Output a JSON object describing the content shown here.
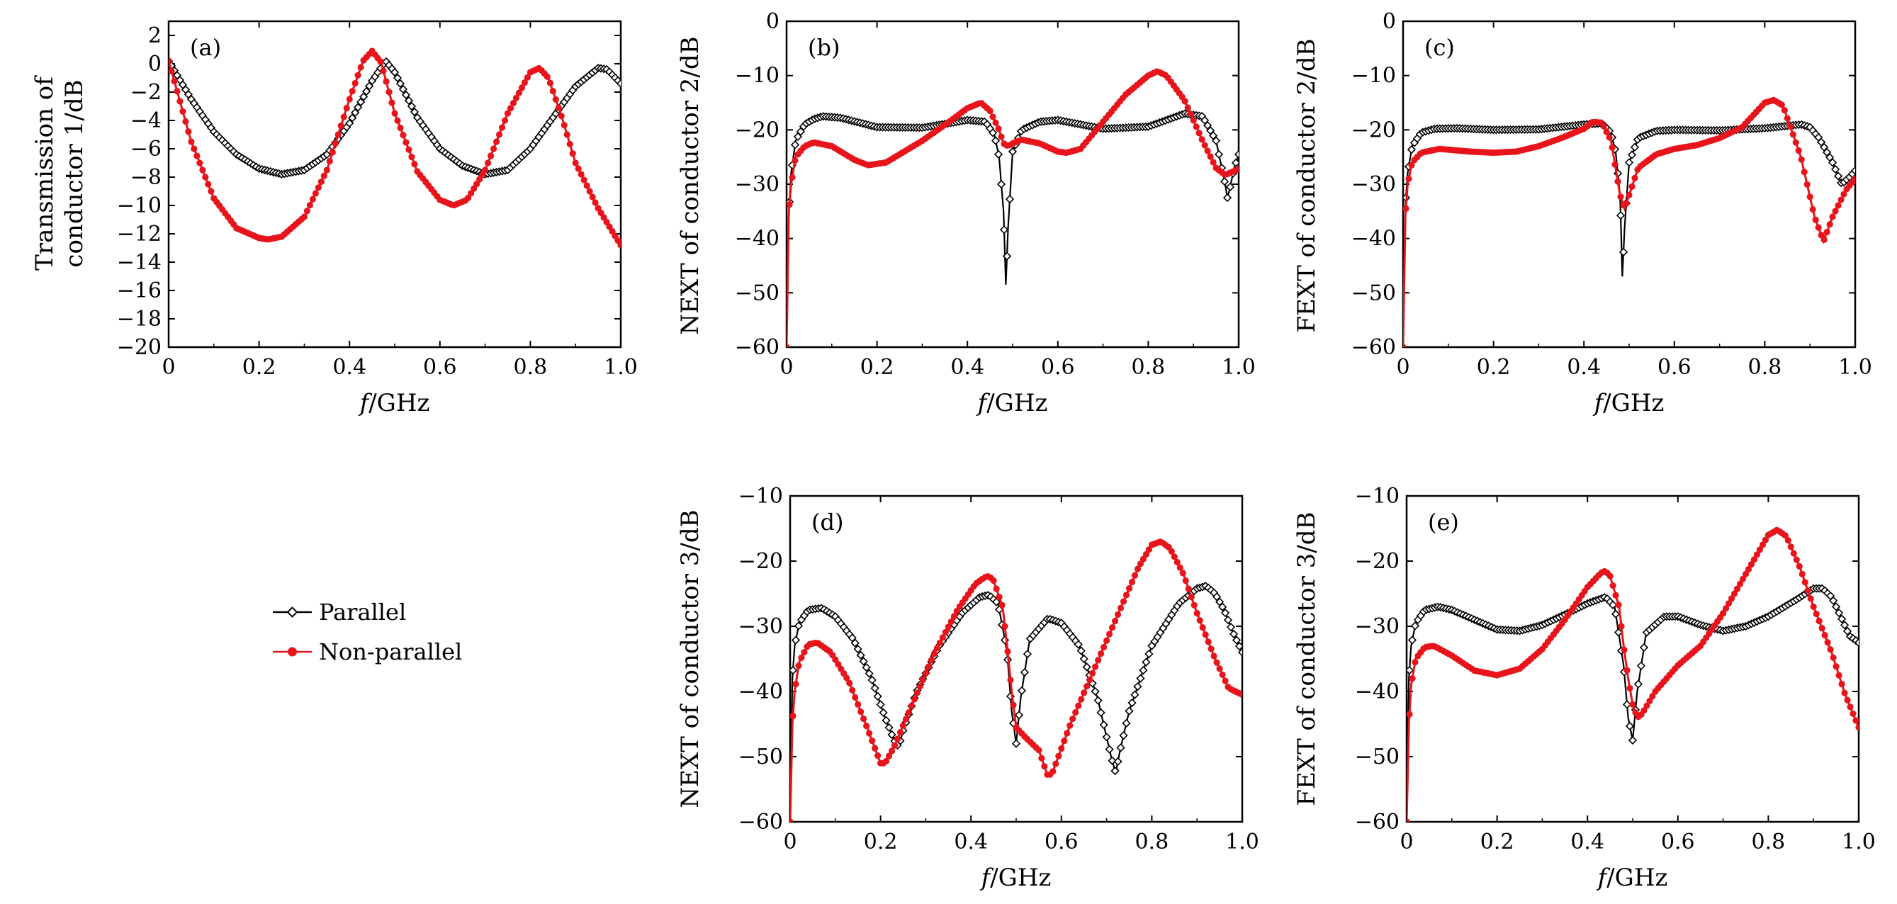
{
  "legend": {
    "parallel": "Parallel",
    "nonparallel": "Non-parallel"
  },
  "colors": {
    "parallel": "#000000",
    "nonparallel": "#e8141b"
  },
  "chart_data": [
    {
      "id": "a",
      "type": "line",
      "panel_label": "(a)",
      "ylabel_line1": "Transmission of",
      "ylabel_line2": "conductor 1/dB",
      "xlabel_pre": "f",
      "xlabel_post": "/GHz",
      "xlim": [
        0,
        1
      ],
      "ylim": [
        -20,
        3
      ],
      "xticks": [
        0,
        0.2,
        0.4,
        0.6,
        0.8,
        1.0
      ],
      "xtick_labels": [
        "0",
        "0.2",
        "0.4",
        "0.6",
        "0.8",
        "1.0"
      ],
      "yticks": [
        2,
        0,
        -2,
        -4,
        -6,
        -8,
        -10,
        -12,
        -14,
        -16,
        -18,
        -20
      ],
      "ytick_labels": [
        "2",
        "0",
        "−2",
        "−4",
        "−6",
        "−8",
        "−10",
        "−12",
        "−14",
        "−16",
        "−18",
        "−20"
      ],
      "series": [
        {
          "name": "Parallel",
          "x": [
            0,
            0.05,
            0.1,
            0.15,
            0.2,
            0.25,
            0.3,
            0.35,
            0.4,
            0.45,
            0.48,
            0.5,
            0.55,
            0.6,
            0.65,
            0.7,
            0.75,
            0.8,
            0.85,
            0.9,
            0.95,
            0.97,
            1.0
          ],
          "y": [
            0.2,
            -2.5,
            -4.8,
            -6.4,
            -7.4,
            -7.8,
            -7.5,
            -6.4,
            -4.2,
            -1.2,
            0.2,
            -0.6,
            -3.8,
            -6.0,
            -7.2,
            -7.8,
            -7.5,
            -6.0,
            -3.8,
            -1.6,
            -0.3,
            -0.4,
            -1.4
          ]
        },
        {
          "name": "Non-parallel",
          "x": [
            0,
            0.05,
            0.1,
            0.15,
            0.2,
            0.22,
            0.25,
            0.3,
            0.35,
            0.4,
            0.43,
            0.45,
            0.47,
            0.5,
            0.55,
            0.6,
            0.63,
            0.66,
            0.7,
            0.75,
            0.8,
            0.82,
            0.84,
            0.87,
            0.9,
            0.95,
            1.0
          ],
          "y": [
            0.2,
            -5.5,
            -9.5,
            -11.6,
            -12.3,
            -12.4,
            -12.2,
            -10.8,
            -7.5,
            -2.5,
            0.2,
            0.9,
            0.1,
            -3.5,
            -7.6,
            -9.6,
            -10.0,
            -9.6,
            -7.5,
            -3.5,
            -0.6,
            -0.3,
            -1.0,
            -3.8,
            -7.0,
            -10.2,
            -12.8
          ]
        }
      ]
    },
    {
      "id": "b",
      "type": "line",
      "panel_label": "(b)",
      "ylabel": "NEXT of conductor 2/dB",
      "xlabel_pre": "f",
      "xlabel_post": "/GHz",
      "xlim": [
        0,
        1
      ],
      "ylim": [
        -60,
        0
      ],
      "xticks": [
        0,
        0.2,
        0.4,
        0.6,
        0.8,
        1.0
      ],
      "xtick_labels": [
        "0",
        "0.2",
        "0.4",
        "0.6",
        "0.8",
        "1.0"
      ],
      "yticks": [
        0,
        -10,
        -20,
        -30,
        -40,
        -50,
        -60
      ],
      "ytick_labels": [
        "0",
        "−10",
        "−20",
        "−30",
        "−40",
        "−50",
        "−60"
      ],
      "series": [
        {
          "name": "Parallel",
          "x": [
            0,
            0.005,
            0.01,
            0.02,
            0.04,
            0.06,
            0.08,
            0.12,
            0.2,
            0.3,
            0.4,
            0.44,
            0.46,
            0.47,
            0.48,
            0.485,
            0.49,
            0.5,
            0.52,
            0.56,
            0.6,
            0.7,
            0.8,
            0.88,
            0.92,
            0.95,
            0.97,
            0.975,
            0.98,
            0.99,
            1.0
          ],
          "y": [
            -60,
            -35,
            -28,
            -22,
            -19,
            -18,
            -17.5,
            -17.8,
            -19.5,
            -19.6,
            -18.2,
            -18.5,
            -21,
            -25,
            -35,
            -48.5,
            -38,
            -24,
            -20,
            -18.5,
            -18.2,
            -19.8,
            -19.4,
            -17.0,
            -17.5,
            -22,
            -30,
            -32.5,
            -31,
            -27,
            -24.5
          ]
        },
        {
          "name": "Non-parallel",
          "x": [
            0,
            0.005,
            0.01,
            0.02,
            0.04,
            0.06,
            0.1,
            0.15,
            0.18,
            0.22,
            0.3,
            0.36,
            0.4,
            0.43,
            0.45,
            0.47,
            0.48,
            0.49,
            0.5,
            0.52,
            0.56,
            0.6,
            0.62,
            0.65,
            0.7,
            0.75,
            0.8,
            0.82,
            0.84,
            0.88,
            0.92,
            0.95,
            0.97,
            1.0
          ],
          "y": [
            -60,
            -35,
            -30,
            -25,
            -23,
            -22.3,
            -23,
            -25.5,
            -26.5,
            -26,
            -22,
            -18.5,
            -16,
            -15,
            -16.5,
            -20,
            -22.5,
            -23,
            -22.5,
            -21.8,
            -22.5,
            -24,
            -24.2,
            -23.5,
            -18.5,
            -13.5,
            -10,
            -9.2,
            -10,
            -14.5,
            -22,
            -27,
            -28.3,
            -27.2
          ]
        }
      ]
    },
    {
      "id": "c",
      "type": "line",
      "panel_label": "(c)",
      "ylabel": "FEXT of conductor 2/dB",
      "xlabel_pre": "f",
      "xlabel_post": "/GHz",
      "xlim": [
        0,
        1
      ],
      "ylim": [
        -60,
        0
      ],
      "xticks": [
        0,
        0.2,
        0.4,
        0.6,
        0.8,
        1.0
      ],
      "xtick_labels": [
        "0",
        "0.2",
        "0.4",
        "0.6",
        "0.8",
        "1.0"
      ],
      "yticks": [
        0,
        -10,
        -20,
        -30,
        -40,
        -50,
        -60
      ],
      "ytick_labels": [
        "0",
        "−10",
        "−20",
        "−30",
        "−40",
        "−50",
        "−60"
      ],
      "series": [
        {
          "name": "Parallel",
          "x": [
            0,
            0.005,
            0.01,
            0.02,
            0.04,
            0.07,
            0.12,
            0.2,
            0.3,
            0.4,
            0.44,
            0.46,
            0.47,
            0.48,
            0.485,
            0.49,
            0.5,
            0.52,
            0.56,
            0.6,
            0.7,
            0.8,
            0.88,
            0.9,
            0.92,
            0.95,
            0.97,
            0.99,
            1.0
          ],
          "y": [
            -60,
            -34,
            -28,
            -23,
            -20.5,
            -19.8,
            -19.7,
            -20,
            -19.9,
            -19,
            -18.8,
            -20.5,
            -24,
            -32,
            -47,
            -38,
            -26,
            -21.5,
            -20.2,
            -20,
            -20.1,
            -19.7,
            -19,
            -19.5,
            -21.5,
            -26,
            -30,
            -28.5,
            -27.5
          ]
        },
        {
          "name": "Non-parallel",
          "x": [
            0,
            0.005,
            0.01,
            0.02,
            0.04,
            0.08,
            0.15,
            0.2,
            0.25,
            0.3,
            0.35,
            0.4,
            0.42,
            0.44,
            0.46,
            0.47,
            0.48,
            0.49,
            0.5,
            0.52,
            0.56,
            0.6,
            0.65,
            0.7,
            0.75,
            0.8,
            0.82,
            0.84,
            0.88,
            0.91,
            0.93,
            0.95,
            0.98,
            1.0
          ],
          "y": [
            -60,
            -36,
            -30,
            -26,
            -24.2,
            -23.5,
            -24,
            -24.2,
            -24,
            -23,
            -21.5,
            -19.8,
            -18.5,
            -18.7,
            -22,
            -27,
            -32,
            -34.5,
            -32,
            -27,
            -24.5,
            -23.5,
            -22.8,
            -21.5,
            -19.5,
            -15,
            -14.5,
            -15.5,
            -25,
            -36,
            -40.5,
            -36,
            -31,
            -29
          ]
        }
      ]
    },
    {
      "id": "d",
      "type": "line",
      "panel_label": "(d)",
      "ylabel": "NEXT of conductor 3/dB",
      "xlabel_pre": "f",
      "xlabel_post": "/GHz",
      "xlim": [
        0,
        1
      ],
      "ylim": [
        -60,
        -10
      ],
      "xticks": [
        0,
        0.2,
        0.4,
        0.6,
        0.8,
        1.0
      ],
      "xtick_labels": [
        "0",
        "0.2",
        "0.4",
        "0.6",
        "0.8",
        "1.0"
      ],
      "yticks": [
        -10,
        -20,
        -30,
        -40,
        -50,
        -60
      ],
      "ytick_labels": [
        "−10",
        "−20",
        "−30",
        "−40",
        "−50",
        "−60"
      ],
      "series": [
        {
          "name": "Parallel",
          "x": [
            0,
            0.005,
            0.01,
            0.02,
            0.04,
            0.07,
            0.1,
            0.14,
            0.18,
            0.21,
            0.23,
            0.24,
            0.25,
            0.28,
            0.33,
            0.38,
            0.42,
            0.44,
            0.46,
            0.48,
            0.49,
            0.5,
            0.51,
            0.53,
            0.57,
            0.6,
            0.64,
            0.68,
            0.71,
            0.72,
            0.73,
            0.75,
            0.8,
            0.86,
            0.9,
            0.92,
            0.94,
            0.96,
            0.98,
            1.0
          ],
          "y": [
            -60,
            -38,
            -33,
            -29.5,
            -27.5,
            -27.2,
            -28.5,
            -32,
            -38,
            -44,
            -47.5,
            -48.5,
            -46,
            -40,
            -33,
            -28,
            -25.5,
            -25.2,
            -26.5,
            -34,
            -43,
            -48,
            -41,
            -32,
            -28.8,
            -29.5,
            -33,
            -41,
            -50,
            -52.5,
            -49,
            -43,
            -33,
            -26.5,
            -24.2,
            -23.8,
            -25,
            -27.5,
            -31,
            -34
          ]
        },
        {
          "name": "Non-parallel",
          "x": [
            0,
            0.005,
            0.01,
            0.02,
            0.04,
            0.06,
            0.09,
            0.13,
            0.17,
            0.2,
            0.21,
            0.23,
            0.27,
            0.32,
            0.37,
            0.41,
            0.43,
            0.44,
            0.45,
            0.47,
            0.48,
            0.49,
            0.5,
            0.52,
            0.55,
            0.57,
            0.58,
            0.62,
            0.67,
            0.72,
            0.77,
            0.8,
            0.82,
            0.84,
            0.87,
            0.9,
            0.94,
            0.97,
            1.0
          ],
          "y": [
            -60,
            -45,
            -40,
            -35.5,
            -32.8,
            -32.5,
            -34,
            -38.5,
            -45.5,
            -51,
            -51,
            -48.5,
            -42,
            -34,
            -27.5,
            -23.5,
            -22.5,
            -22.3,
            -23,
            -27,
            -33,
            -40,
            -45.5,
            -47,
            -49,
            -53,
            -52.5,
            -45,
            -37,
            -29,
            -21,
            -17.5,
            -17,
            -18,
            -22,
            -28,
            -35,
            -39.5,
            -40.5
          ]
        }
      ]
    },
    {
      "id": "e",
      "type": "line",
      "panel_label": "(e)",
      "ylabel": "FEXT of conductor 3/dB",
      "xlabel_pre": "f",
      "xlabel_post": "/GHz",
      "xlim": [
        0,
        1
      ],
      "ylim": [
        -60,
        -10
      ],
      "xticks": [
        0,
        0.2,
        0.4,
        0.6,
        0.8,
        1.0
      ],
      "xtick_labels": [
        "0",
        "0.2",
        "0.4",
        "0.6",
        "0.8",
        "1.0"
      ],
      "yticks": [
        -10,
        -20,
        -30,
        -40,
        -50,
        -60
      ],
      "ytick_labels": [
        "−10",
        "−20",
        "−30",
        "−40",
        "−50",
        "−60"
      ],
      "series": [
        {
          "name": "Parallel",
          "x": [
            0,
            0.005,
            0.01,
            0.02,
            0.04,
            0.07,
            0.1,
            0.15,
            0.2,
            0.25,
            0.3,
            0.35,
            0.4,
            0.44,
            0.46,
            0.48,
            0.49,
            0.5,
            0.51,
            0.53,
            0.57,
            0.6,
            0.65,
            0.7,
            0.75,
            0.8,
            0.86,
            0.9,
            0.92,
            0.94,
            0.96,
            0.98,
            1.0
          ],
          "y": [
            -60,
            -38,
            -33,
            -29.5,
            -27.5,
            -27,
            -27.5,
            -29,
            -30.5,
            -30.7,
            -29.8,
            -28.2,
            -26.5,
            -25.5,
            -27,
            -36,
            -44,
            -47.5,
            -40,
            -31,
            -28.5,
            -28.5,
            -29.8,
            -30.7,
            -30,
            -28.5,
            -26,
            -24.2,
            -24.2,
            -25.5,
            -28.5,
            -31.5,
            -32.5
          ]
        },
        {
          "name": "Non-parallel",
          "x": [
            0,
            0.005,
            0.01,
            0.02,
            0.04,
            0.06,
            0.1,
            0.15,
            0.2,
            0.25,
            0.3,
            0.35,
            0.4,
            0.43,
            0.44,
            0.45,
            0.47,
            0.48,
            0.49,
            0.5,
            0.51,
            0.52,
            0.55,
            0.6,
            0.65,
            0.7,
            0.75,
            0.8,
            0.82,
            0.84,
            0.87,
            0.9,
            0.94,
            0.97,
            1.0
          ],
          "y": [
            -60,
            -45,
            -39,
            -35,
            -33.2,
            -33,
            -34.5,
            -36.8,
            -37.5,
            -36.5,
            -33.5,
            -29,
            -24,
            -21.8,
            -21.5,
            -22.3,
            -27,
            -33,
            -38,
            -42,
            -44,
            -43.5,
            -40,
            -36,
            -33,
            -28,
            -22,
            -16,
            -15.2,
            -16.2,
            -21,
            -27,
            -34,
            -40.5,
            -45.5
          ]
        }
      ]
    }
  ]
}
